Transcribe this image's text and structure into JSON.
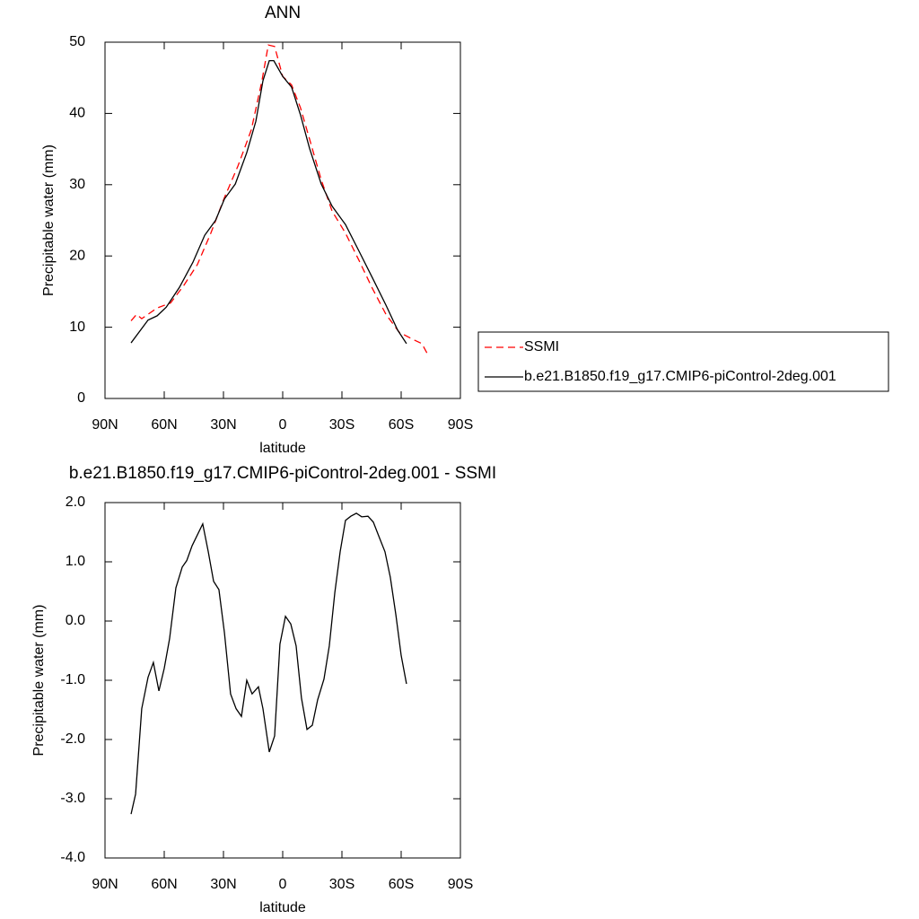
{
  "chart_data": [
    {
      "type": "line",
      "title": "ANN",
      "x_label": "latitude",
      "y_label": "Precipitable water (mm)",
      "xlim": [
        90,
        -90
      ],
      "xticks": [
        {
          "value": 90,
          "label": "90N"
        },
        {
          "value": 60,
          "label": "60N"
        },
        {
          "value": 30,
          "label": "30N"
        },
        0,
        {
          "value": -30,
          "label": "30S"
        },
        {
          "value": -60,
          "label": "60S"
        },
        {
          "value": -90,
          "label": "90S"
        }
      ],
      "ylim": [
        0,
        50
      ],
      "yticks": [
        0,
        10,
        20,
        30,
        40,
        50
      ],
      "legend": "right",
      "series": [
        {
          "name": "SSMI",
          "color": "#ff0000",
          "line_style": "dashed",
          "x": [
            76.8,
            74,
            71.4,
            63.6,
            56.8,
            50,
            43.2,
            36.4,
            29.5,
            22.7,
            15.9,
            10.5,
            7.3,
            4.1,
            0,
            -4.5,
            -9,
            -13.6,
            -19.5,
            -25,
            -31.8,
            -38.6,
            -45.5,
            -52.3,
            -59,
            -65.9,
            -70.5,
            -74
          ],
          "values": [
            10.9,
            11.8,
            11.2,
            12.7,
            13.4,
            15.9,
            18.8,
            23.2,
            28.2,
            32.6,
            37.7,
            44.6,
            49.6,
            49.4,
            45.2,
            44,
            40.8,
            36.4,
            30.7,
            26.3,
            23.2,
            19.4,
            15.4,
            11.8,
            9.3,
            8.3,
            7.7,
            5.9
          ]
        },
        {
          "name": "b.e21.B1850.f19_g17.CMIP6-piControl-2deg.001",
          "color": "#000000",
          "line_style": "solid",
          "x": [
            76.8,
            68.2,
            63.6,
            59,
            52.3,
            45.5,
            39.5,
            34,
            29.5,
            24,
            18.2,
            13.6,
            10,
            6.8,
            4.5,
            0,
            -4.5,
            -9,
            -13.6,
            -19.5,
            -25,
            -31.8,
            -38.6,
            -45.5,
            -52.3,
            -58.2,
            -62.7
          ],
          "values": [
            7.8,
            11,
            11.6,
            12.8,
            15.6,
            19.1,
            22.9,
            25,
            28,
            30.1,
            34.5,
            38.9,
            44.6,
            47.4,
            47.4,
            45.2,
            43.7,
            39.8,
            35.1,
            30.1,
            27,
            24.4,
            20.7,
            16.9,
            13.1,
            9.6,
            7.7
          ]
        }
      ]
    },
    {
      "type": "line",
      "title": "b.e21.B1850.f19_g17.CMIP6-piControl-2deg.001 - SSMI",
      "x_label": "latitude",
      "y_label": "Precipitable water (mm)",
      "xlim": [
        90,
        -90
      ],
      "xticks": [
        {
          "value": 90,
          "label": "90N"
        },
        {
          "value": 60,
          "label": "60N"
        },
        {
          "value": 30,
          "label": "30N"
        },
        0,
        {
          "value": -30,
          "label": "30S"
        },
        {
          "value": -60,
          "label": "60S"
        },
        {
          "value": -90,
          "label": "90S"
        }
      ],
      "ylim": [
        -4,
        2
      ],
      "yticks": [
        {
          "value": -4,
          "label": "-4.0"
        },
        {
          "value": -3,
          "label": "-3.0"
        },
        {
          "value": -2,
          "label": "-2.0"
        },
        {
          "value": -1,
          "label": "-1.0"
        },
        {
          "value": 0,
          "label": "0.0"
        },
        {
          "value": 1,
          "label": "1.0"
        },
        {
          "value": 2,
          "label": "2.0"
        }
      ],
      "series": [
        {
          "color": "#000000",
          "line_style": "solid",
          "x": [
            76.8,
            74.5,
            71.4,
            68.2,
            65.5,
            62.7,
            60,
            57.3,
            54.1,
            50.9,
            48.6,
            45.9,
            40.5,
            37.7,
            35,
            32.3,
            29.5,
            26.4,
            23.6,
            20.9,
            18.2,
            15.5,
            12.3,
            10,
            6.8,
            4.1,
            1.4,
            -1.4,
            -4.1,
            -6.8,
            -9.5,
            -12.3,
            -15,
            -17.7,
            -20.9,
            -23.6,
            -26.4,
            -29.1,
            -31.8,
            -34.5,
            -37.3,
            -40,
            -43.2,
            -45.9,
            -48.6,
            -51.8,
            -54.5,
            -57.3,
            -60,
            -62.7
          ],
          "values": [
            -3.26,
            -2.92,
            -1.48,
            -0.95,
            -0.7,
            -1.18,
            -0.8,
            -0.3,
            0.56,
            0.91,
            1.02,
            1.27,
            1.64,
            1.17,
            0.67,
            0.53,
            -0.2,
            -1.23,
            -1.48,
            -1.61,
            -1,
            -1.23,
            -1.11,
            -1.48,
            -2.21,
            -1.94,
            -0.39,
            0.08,
            -0.05,
            -0.42,
            -1.3,
            -1.83,
            -1.76,
            -1.33,
            -0.98,
            -0.42,
            0.48,
            1.17,
            1.7,
            1.77,
            1.82,
            1.76,
            1.77,
            1.67,
            1.44,
            1.17,
            0.74,
            0.11,
            -0.58,
            -1.06
          ]
        }
      ]
    }
  ]
}
